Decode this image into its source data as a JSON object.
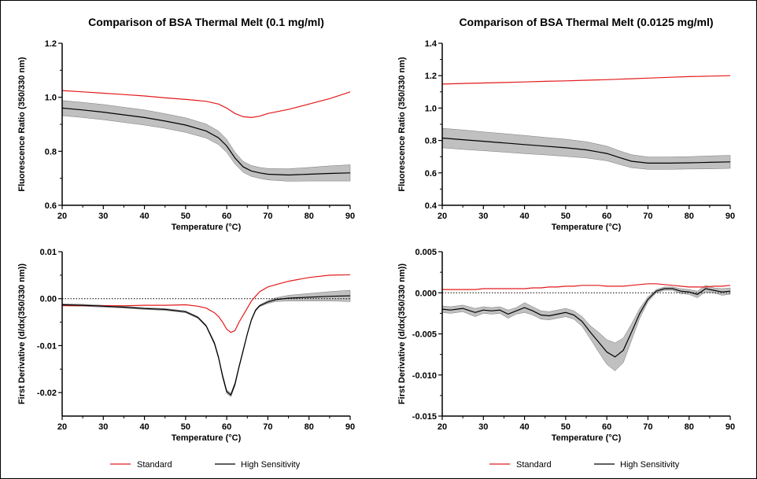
{
  "colors": {
    "standard": "#e31a1c",
    "high_sensitivity": "#000000",
    "band": "#c0c0c0"
  },
  "chart_data": [
    {
      "type": "line",
      "title": "Comparison of BSA Thermal Melt (0.1 mg/ml)",
      "xlabel": "Temperature (°C)",
      "ylabel": "Fluorescence Ratio (350/330 nm)",
      "xlim": [
        20,
        90
      ],
      "ylim": [
        0.6,
        1.2
      ],
      "xticks": [
        "20",
        "30",
        "40",
        "50",
        "60",
        "70",
        "80",
        "90"
      ],
      "yticks": [
        "0.6",
        "0.8",
        "1.0",
        "1.2"
      ],
      "x": [
        20,
        25,
        30,
        35,
        40,
        45,
        50,
        55,
        58,
        60,
        62,
        64,
        66,
        68,
        70,
        75,
        80,
        85,
        90
      ],
      "series": [
        {
          "name": "Standard",
          "values": [
            1.025,
            1.02,
            1.015,
            1.01,
            1.005,
            0.998,
            0.992,
            0.985,
            0.975,
            0.96,
            0.94,
            0.928,
            0.925,
            0.93,
            0.94,
            0.955,
            0.975,
            0.995,
            1.02
          ]
        },
        {
          "name": "High Sensitivity",
          "values": [
            0.96,
            0.953,
            0.945,
            0.935,
            0.925,
            0.912,
            0.897,
            0.875,
            0.85,
            0.82,
            0.775,
            0.742,
            0.727,
            0.72,
            0.715,
            0.712,
            0.715,
            0.718,
            0.72
          ],
          "band": [
            0.028,
            0.028,
            0.028,
            0.028,
            0.028,
            0.027,
            0.027,
            0.026,
            0.025,
            0.024,
            0.022,
            0.02,
            0.02,
            0.02,
            0.021,
            0.023,
            0.025,
            0.028,
            0.03
          ]
        }
      ]
    },
    {
      "type": "line",
      "title": "Comparison of BSA Thermal Melt (0.0125 mg/ml)",
      "xlabel": "Temperature (°C)",
      "ylabel": "Fluorescence Ratio (350/330 nm)",
      "xlim": [
        20,
        90
      ],
      "ylim": [
        0.4,
        1.4
      ],
      "xticks": [
        "20",
        "30",
        "40",
        "50",
        "60",
        "70",
        "80",
        "90"
      ],
      "yticks": [
        "0.4",
        "0.6",
        "0.8",
        "1.0",
        "1.2",
        "1.4"
      ],
      "x": [
        20,
        25,
        30,
        35,
        40,
        45,
        50,
        55,
        60,
        63,
        66,
        70,
        75,
        80,
        85,
        90
      ],
      "series": [
        {
          "name": "Standard",
          "values": [
            1.148,
            1.152,
            1.155,
            1.158,
            1.161,
            1.165,
            1.168,
            1.172,
            1.175,
            1.178,
            1.181,
            1.185,
            1.19,
            1.194,
            1.197,
            1.2
          ]
        },
        {
          "name": "High Sensitivity",
          "values": [
            0.815,
            0.805,
            0.795,
            0.785,
            0.775,
            0.765,
            0.755,
            0.742,
            0.72,
            0.695,
            0.672,
            0.66,
            0.66,
            0.662,
            0.665,
            0.668
          ],
          "band": [
            0.06,
            0.06,
            0.058,
            0.057,
            0.056,
            0.054,
            0.053,
            0.05,
            0.045,
            0.042,
            0.04,
            0.038,
            0.038,
            0.038,
            0.04,
            0.04
          ]
        }
      ]
    },
    {
      "type": "line",
      "xlabel": "Temperature (°C)",
      "ylabel": "First Derivative (d/dx(350/330 nm))",
      "xlim": [
        20,
        90
      ],
      "ylim": [
        -0.025,
        0.01
      ],
      "xticks": [
        "20",
        "30",
        "40",
        "50",
        "60",
        "70",
        "80",
        "90"
      ],
      "yticks": [
        "0.01",
        "0.00",
        "-0.01",
        "-0.02"
      ],
      "yticks_values": [
        0.01,
        0.0,
        -0.01,
        -0.02
      ],
      "reference_line": 0,
      "x": [
        20,
        25,
        30,
        35,
        40,
        45,
        50,
        53,
        55,
        57,
        58,
        59,
        60,
        61,
        62,
        63,
        64,
        65,
        66,
        67,
        68,
        70,
        72,
        75,
        80,
        85,
        90
      ],
      "series": [
        {
          "name": "Standard",
          "values": [
            -0.0015,
            -0.0015,
            -0.0015,
            -0.0015,
            -0.0014,
            -0.0014,
            -0.0013,
            -0.0016,
            -0.002,
            -0.003,
            -0.0038,
            -0.005,
            -0.0065,
            -0.0072,
            -0.0068,
            -0.005,
            -0.0035,
            -0.002,
            -0.0005,
            0.0005,
            0.0015,
            0.0025,
            0.003,
            0.0037,
            0.0045,
            0.005,
            0.0051
          ]
        },
        {
          "name": "High Sensitivity",
          "values": [
            -0.0013,
            -0.0014,
            -0.0016,
            -0.0018,
            -0.0021,
            -0.0023,
            -0.0028,
            -0.004,
            -0.0058,
            -0.0095,
            -0.0125,
            -0.0165,
            -0.0198,
            -0.0205,
            -0.0182,
            -0.0145,
            -0.011,
            -0.0075,
            -0.0045,
            -0.0025,
            -0.0015,
            -0.0007,
            -0.0002,
            0.0001,
            0.0003,
            0.0005,
            0.0006
          ],
          "band": [
            0.0002,
            0.0002,
            0.0002,
            0.0002,
            0.0002,
            0.0002,
            0.0002,
            0.0002,
            0.0002,
            0.0003,
            0.0003,
            0.0004,
            0.0004,
            0.0004,
            0.0004,
            0.0003,
            0.0003,
            0.0002,
            0.0002,
            0.0002,
            0.0002,
            0.0003,
            0.0004,
            0.0006,
            0.0008,
            0.001,
            0.0012
          ]
        }
      ]
    },
    {
      "type": "line",
      "xlabel": "Temperature (°C)",
      "ylabel": "First Derivative (d/dx(350/330 nm))",
      "xlim": [
        20,
        90
      ],
      "ylim": [
        -0.015,
        0.005
      ],
      "xticks": [
        "20",
        "30",
        "40",
        "50",
        "60",
        "70",
        "80",
        "90"
      ],
      "yticks": [
        "0.005",
        "0.000",
        "-0.005",
        "-0.010",
        "-0.015"
      ],
      "yticks_values": [
        0.005,
        0.0,
        -0.005,
        -0.01,
        -0.015
      ],
      "reference_line": 0,
      "x": [
        20,
        22,
        25,
        28,
        30,
        32,
        34,
        36,
        38,
        40,
        42,
        44,
        46,
        48,
        50,
        52,
        54,
        56,
        58,
        60,
        62,
        64,
        66,
        68,
        70,
        72,
        74,
        76,
        78,
        80,
        82,
        84,
        86,
        88,
        90
      ],
      "series": [
        {
          "name": "Standard",
          "values": [
            0.0004,
            0.0004,
            0.0004,
            0.0004,
            0.0005,
            0.0005,
            0.0005,
            0.0005,
            0.0005,
            0.0005,
            0.0006,
            0.0006,
            0.0007,
            0.0007,
            0.0008,
            0.0008,
            0.0009,
            0.0009,
            0.0009,
            0.0008,
            0.0008,
            0.0008,
            0.0009,
            0.001,
            0.0011,
            0.0011,
            0.001,
            0.0009,
            0.0008,
            0.0007,
            0.0007,
            0.0007,
            0.0008,
            0.0008,
            0.0009
          ]
        },
        {
          "name": "High Sensitivity",
          "values": [
            -0.002,
            -0.0021,
            -0.0019,
            -0.0024,
            -0.0021,
            -0.0022,
            -0.0021,
            -0.0026,
            -0.0022,
            -0.0018,
            -0.0022,
            -0.0027,
            -0.0028,
            -0.0026,
            -0.0024,
            -0.0027,
            -0.0035,
            -0.0048,
            -0.006,
            -0.0072,
            -0.0078,
            -0.007,
            -0.0048,
            -0.0025,
            -0.0008,
            0.0002,
            0.0005,
            0.0005,
            0.0002,
            0.0001,
            -0.0002,
            0.0005,
            0.0003,
            0.0001,
            0.0002
          ],
          "band": [
            0.0004,
            0.0004,
            0.0004,
            0.0005,
            0.0004,
            0.0004,
            0.0004,
            0.0005,
            0.0004,
            0.0006,
            0.0005,
            0.0005,
            0.0005,
            0.0005,
            0.0005,
            0.0005,
            0.0006,
            0.0008,
            0.0012,
            0.0015,
            0.0017,
            0.0015,
            0.001,
            0.0006,
            0.0003,
            0.0002,
            0.0002,
            0.0002,
            0.0003,
            0.0003,
            0.0004,
            0.0004,
            0.0003,
            0.0004,
            0.0004
          ]
        }
      ]
    }
  ],
  "legends": [
    {
      "standard_label": "Standard",
      "high_sensitivity_label": "High Sensitivity"
    },
    {
      "standard_label": "Standard",
      "high_sensitivity_label": "High Sensitivity"
    }
  ]
}
